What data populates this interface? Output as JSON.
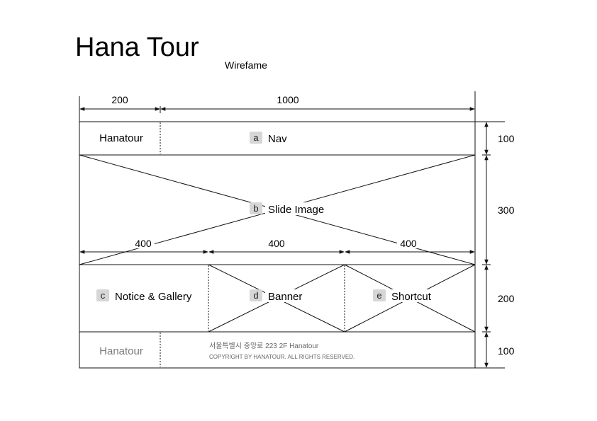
{
  "title": "Hana Tour",
  "subtitle": "Wirefame",
  "dimensions": {
    "width_logo": "200",
    "width_nav": "1000",
    "col1": "400",
    "col2": "400",
    "col3": "400",
    "height_header": "100",
    "height_slide": "300",
    "height_content": "200",
    "height_footer": "100"
  },
  "header": {
    "logo": "Hanatour",
    "nav_badge": "a",
    "nav_label": "Nav"
  },
  "slide": {
    "badge": "b",
    "label": "Slide Image"
  },
  "content": {
    "notice_badge": "c",
    "notice_label": "Notice & Gallery",
    "banner_badge": "d",
    "banner_label": "Banner",
    "shortcut_badge": "e",
    "shortcut_label": "Shortcut"
  },
  "footer": {
    "logo": "Hanatour",
    "address": "서울특별시 중앙로 223 2F Hanatour",
    "copyright": "COPYRIGHT BY HANATOUR. ALL RIGHTS RESERVED."
  }
}
